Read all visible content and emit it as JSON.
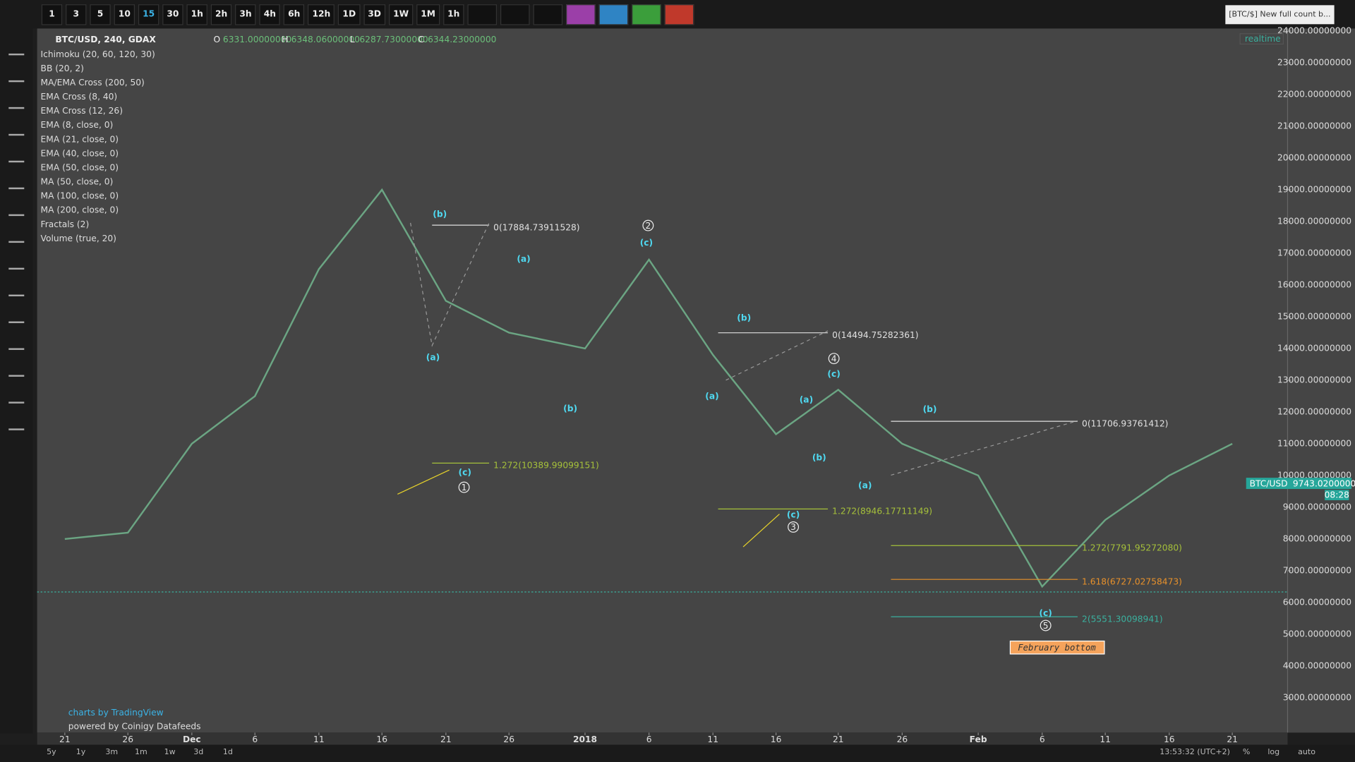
{
  "toolbar": {
    "intervals": [
      "1",
      "3",
      "5",
      "10",
      "15",
      "30",
      "1h",
      "2h",
      "3h",
      "4h",
      "6h",
      "12h",
      "1D",
      "3D",
      "1W",
      "1M",
      "1h"
    ],
    "symbol_search": "[BTC/$] New full count b..."
  },
  "legend": {
    "symbol": "BTC/USD, 240, GDAX",
    "ohlc": [
      {
        "key": "O",
        "value": "6331.00000000"
      },
      {
        "key": "H",
        "value": "6348.06000000"
      },
      {
        "key": "L",
        "value": "6287.73000000"
      },
      {
        "key": "C",
        "value": "6344.23000000"
      }
    ],
    "indicators": [
      "Ichimoku (20, 60, 120, 30)",
      "BB (20, 2)",
      "MA/EMA Cross (200, 50)",
      "EMA Cross (8, 40)",
      "EMA Cross (12, 26)",
      "EMA (8, close, 0)",
      "EMA (21, close, 0)",
      "EMA (40, close, 0)",
      "EMA (50, close, 0)",
      "MA (50, close, 0)",
      "MA (100, close, 0)",
      "MA (200, close, 0)",
      "Fractals (2)",
      "Volume (true, 20)"
    ],
    "realtime": "realtime"
  },
  "chart_data": {
    "type": "line",
    "categories": [
      "21",
      "26",
      "Dec",
      "6",
      "11",
      "16",
      "21",
      "26",
      "2018",
      "6",
      "11",
      "16",
      "21",
      "26",
      "Feb",
      "6",
      "11",
      "16",
      "21"
    ],
    "series": [
      {
        "name": "BTC/USD",
        "color": "#6ba583",
        "values": [
          8000,
          8200,
          11000,
          12500,
          16500,
          19000,
          15500,
          14500,
          14000,
          16800,
          13800,
          11300,
          12700,
          11000,
          10000,
          6500,
          8600,
          10000,
          11000
        ]
      }
    ],
    "ylim": [
      1900,
      24080
    ],
    "yticks": [
      {
        "value": 3000,
        "label": "3000.00000000"
      },
      {
        "value": 4000,
        "label": "4000.00000000"
      },
      {
        "value": 5000,
        "label": "5000.00000000"
      },
      {
        "value": 6000,
        "label": "6000.00000000"
      },
      {
        "value": 7000,
        "label": "7000.00000000"
      },
      {
        "value": 8000,
        "label": "8000.00000000"
      },
      {
        "value": 9000,
        "label": "9000.00000000"
      },
      {
        "value": 10000,
        "label": "10000.00000000"
      },
      {
        "value": 11000,
        "label": "11000.00000000"
      },
      {
        "value": 12000,
        "label": "12000.00000000"
      },
      {
        "value": 13000,
        "label": "13000.00000000"
      },
      {
        "value": 14000,
        "label": "14000.00000000"
      },
      {
        "value": 15000,
        "label": "15000.00000000"
      },
      {
        "value": 16000,
        "label": "16000.00000000"
      },
      {
        "value": 17000,
        "label": "17000.00000000"
      },
      {
        "value": 18000,
        "label": "18000.00000000"
      },
      {
        "value": 19000,
        "label": "19000.00000000"
      },
      {
        "value": 20000,
        "label": "20000.00000000"
      },
      {
        "value": 21000,
        "label": "21000.00000000"
      },
      {
        "value": 22000,
        "label": "22000.00000000"
      },
      {
        "value": 23000,
        "label": "23000.00000000"
      },
      {
        "value": 24000,
        "label": "24000.00000000"
      }
    ],
    "price_line": 6331,
    "current_price": {
      "label": "BTC/USD",
      "value": "9743.02000000",
      "countdown": "08:28"
    },
    "annotations": [
      "(b)",
      "(a)",
      "(c)",
      "1",
      "(a)",
      "(b)",
      "2",
      "(c)",
      "(b)",
      "(a)",
      "4",
      "(c)",
      "(a)",
      "(b)",
      "(c)",
      "3",
      "(b)",
      "(a)",
      "(c)",
      "5"
    ],
    "fib_levels": [
      {
        "label": "0(17884.73911528)",
        "value": 17884.73911528,
        "color": "#e0e0e0"
      },
      {
        "label": "1.272(10389.99099151)",
        "value": 10389.99099151,
        "color": "#a5c03a"
      },
      {
        "label": "0(14494.75282361)",
        "value": 14494.75282361,
        "color": "#e0e0e0"
      },
      {
        "label": "1.272(8946.17711149)",
        "value": 8946.17711149,
        "color": "#a5c03a"
      },
      {
        "label": "0(11706.93761412)",
        "value": 11706.93761412,
        "color": "#e0e0e0"
      },
      {
        "label": "1.272(7791.95272080)",
        "value": 7791.9527208,
        "color": "#a5c03a"
      },
      {
        "label": "1.618(6727.02758473)",
        "value": 6727.02758473,
        "color": "#e8912b"
      },
      {
        "label": "2(5551.30098941)",
        "value": 5551.30098941,
        "color": "#3ab09e"
      }
    ],
    "note": "February bottom",
    "branding": "charts by TradingView",
    "datafeed": "powered by Coinigy Datafeeds"
  },
  "footer": {
    "ranges": [
      "5y",
      "1y",
      "3m",
      "1m",
      "1w",
      "3d",
      "1d"
    ],
    "clock": "13:53:32 (UTC+2)",
    "percent": "%",
    "log": "log",
    "auto": "auto"
  }
}
